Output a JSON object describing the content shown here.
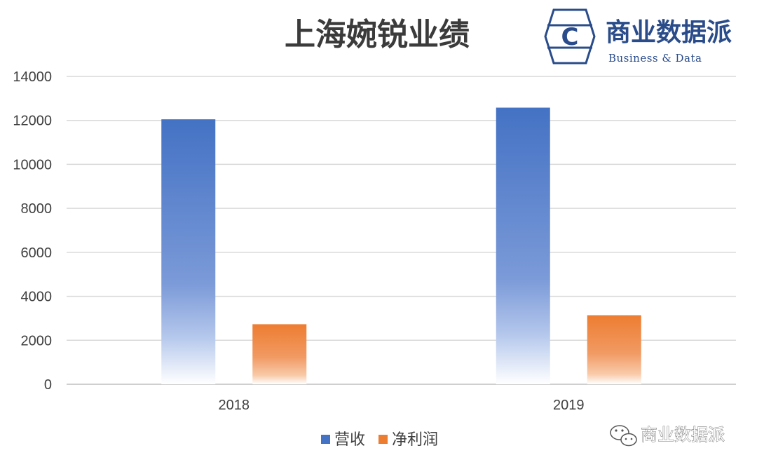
{
  "chart_data": {
    "type": "bar",
    "title": "上海婉锐业绩",
    "categories": [
      "2018",
      "2019"
    ],
    "series": [
      {
        "name": "营收",
        "values": [
          12050,
          12580
        ],
        "color": "#4472c4"
      },
      {
        "name": "净利润",
        "values": [
          2730,
          3140
        ],
        "color": "#ed7d31"
      }
    ],
    "ylim": [
      0,
      14000
    ],
    "yticks": [
      "0",
      "2000",
      "4000",
      "6000",
      "8000",
      "10000",
      "12000",
      "14000"
    ],
    "grid": true,
    "legend_position": "bottom-center",
    "xlabel": "",
    "ylabel": ""
  },
  "logo": {
    "mark_letter": "C",
    "name": "商业数据派",
    "subtitle": "Business & Data"
  },
  "watermark": {
    "text": "商业数据派"
  }
}
